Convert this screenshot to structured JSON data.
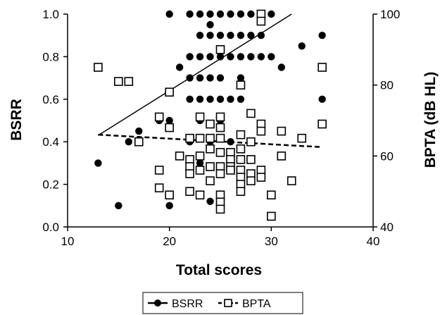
{
  "chart_data": {
    "type": "scatter",
    "xlabel": "Total scores",
    "ylabel": "BSRR",
    "y2label": "BPTA (dB HL)",
    "xlim": [
      10,
      40
    ],
    "ylim": [
      0,
      1
    ],
    "y2lim": [
      40,
      100
    ],
    "x_ticks": [
      "10",
      "20",
      "30",
      "40"
    ],
    "y_ticks": [
      "0.0",
      "0.2",
      "0.4",
      "0.6",
      "0.8",
      "1.0"
    ],
    "y2_ticks": [
      "40",
      "60",
      "80",
      "100"
    ],
    "legend_position": "bottom-center",
    "grid": false,
    "series": [
      {
        "name": "BSRR",
        "axis": "left",
        "marker": "filled-circle",
        "color": "#000000",
        "trendline": {
          "style": "solid",
          "x": [
            13,
            32
          ],
          "y": [
            0.43,
            1.0
          ]
        },
        "points": [
          [
            13,
            0.3
          ],
          [
            15,
            0.1
          ],
          [
            16,
            0.4
          ],
          [
            17,
            0.45
          ],
          [
            19,
            0.5
          ],
          [
            20,
            0.5
          ],
          [
            20,
            0.1
          ],
          [
            20,
            1.0
          ],
          [
            21,
            0.75
          ],
          [
            22,
            0.6
          ],
          [
            22,
            0.7
          ],
          [
            22,
            0.8
          ],
          [
            22,
            1.0
          ],
          [
            22,
            0.4
          ],
          [
            23,
            0.6
          ],
          [
            23,
            0.7
          ],
          [
            23,
            0.8
          ],
          [
            23,
            0.9
          ],
          [
            23,
            1.0
          ],
          [
            23,
            0.3
          ],
          [
            23,
            0.5
          ],
          [
            24,
            0.6
          ],
          [
            24,
            0.7
          ],
          [
            24,
            0.8
          ],
          [
            24,
            0.9
          ],
          [
            24,
            0.95
          ],
          [
            24,
            1.0
          ],
          [
            24,
            0.4
          ],
          [
            24,
            0.12
          ],
          [
            25,
            0.5
          ],
          [
            25,
            0.6
          ],
          [
            25,
            0.7
          ],
          [
            25,
            0.8
          ],
          [
            25,
            0.9
          ],
          [
            25,
            1.0
          ],
          [
            26,
            0.6
          ],
          [
            26,
            0.8
          ],
          [
            26,
            0.9
          ],
          [
            26,
            1.0
          ],
          [
            26,
            0.4
          ],
          [
            27,
            0.6
          ],
          [
            27,
            0.7
          ],
          [
            27,
            0.8
          ],
          [
            27,
            0.9
          ],
          [
            27,
            1.0
          ],
          [
            28,
            0.8
          ],
          [
            28,
            0.9
          ],
          [
            28,
            1.0
          ],
          [
            28,
            0.4
          ],
          [
            29,
            0.8
          ],
          [
            29,
            0.9
          ],
          [
            29,
            1.0
          ],
          [
            30,
            1.0
          ],
          [
            30,
            0.8
          ],
          [
            31,
            0.75
          ],
          [
            33,
            0.85
          ],
          [
            35,
            0.9
          ],
          [
            35,
            0.6
          ]
        ]
      },
      {
        "name": "BPTA",
        "axis": "right",
        "marker": "open-square",
        "color": "#000000",
        "trendline": {
          "style": "dashed",
          "x": [
            13,
            35
          ],
          "y": [
            66,
            62.5
          ]
        },
        "points": [
          [
            13,
            85
          ],
          [
            15,
            81
          ],
          [
            16,
            81
          ],
          [
            17,
            64
          ],
          [
            19,
            71
          ],
          [
            19,
            56
          ],
          [
            19,
            51
          ],
          [
            20,
            78
          ],
          [
            20,
            68
          ],
          [
            20,
            49
          ],
          [
            21,
            60
          ],
          [
            22,
            65
          ],
          [
            22,
            59
          ],
          [
            22,
            57
          ],
          [
            22,
            55
          ],
          [
            22,
            50
          ],
          [
            23,
            71
          ],
          [
            23,
            65
          ],
          [
            23,
            60
          ],
          [
            23,
            56
          ],
          [
            23,
            49
          ],
          [
            24,
            69
          ],
          [
            24,
            65
          ],
          [
            24,
            62
          ],
          [
            24,
            57
          ],
          [
            24,
            53
          ],
          [
            25,
            90
          ],
          [
            25,
            71
          ],
          [
            25,
            68
          ],
          [
            25,
            65
          ],
          [
            25,
            61
          ],
          [
            25,
            57
          ],
          [
            25,
            55
          ],
          [
            25,
            49
          ],
          [
            25,
            47
          ],
          [
            25,
            45
          ],
          [
            26,
            61
          ],
          [
            26,
            59
          ],
          [
            26,
            57
          ],
          [
            26,
            56
          ],
          [
            27,
            80
          ],
          [
            27,
            66
          ],
          [
            27,
            62
          ],
          [
            27,
            59
          ],
          [
            27,
            56
          ],
          [
            27,
            54
          ],
          [
            27,
            52
          ],
          [
            27,
            50
          ],
          [
            28,
            72
          ],
          [
            28,
            64
          ],
          [
            28,
            59
          ],
          [
            28,
            55
          ],
          [
            28,
            53
          ],
          [
            29,
            100
          ],
          [
            29,
            98
          ],
          [
            29,
            69
          ],
          [
            29,
            67
          ],
          [
            29,
            56
          ],
          [
            29,
            54
          ],
          [
            30,
            49
          ],
          [
            30,
            43
          ],
          [
            31,
            67
          ],
          [
            31,
            60
          ],
          [
            32,
            53
          ],
          [
            33,
            65
          ],
          [
            35,
            85
          ],
          [
            35,
            69
          ]
        ]
      }
    ]
  }
}
